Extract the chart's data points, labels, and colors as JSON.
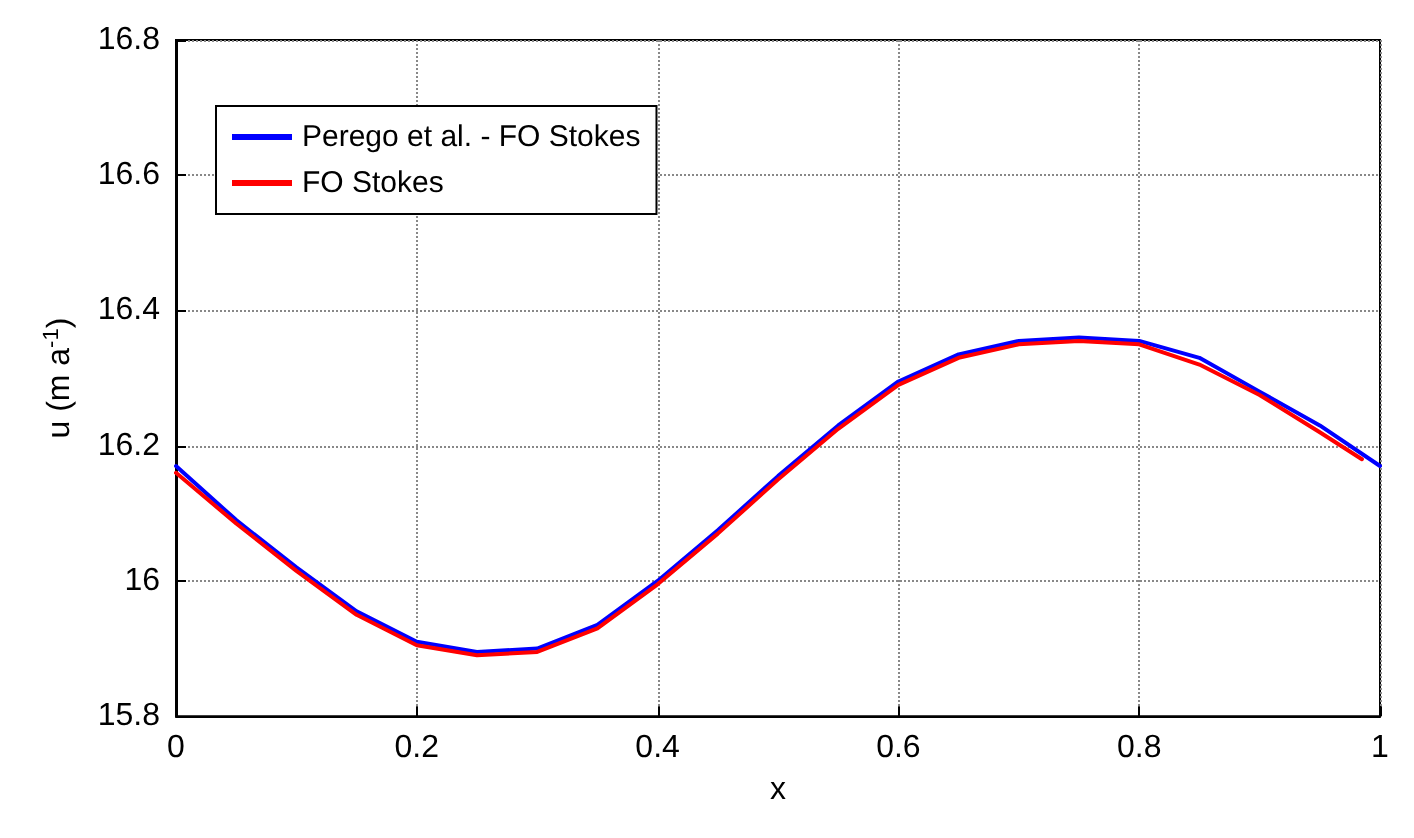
{
  "chart_data": {
    "type": "line",
    "xlabel": "x",
    "ylabel": "u (m a$^{-1}$)",
    "xlim": [
      0,
      1
    ],
    "xticks": [
      0,
      0.2,
      0.4,
      0.6,
      0.8,
      1
    ],
    "ylim": [
      15.8,
      16.8
    ],
    "yticks": [
      15.8,
      16,
      16.2,
      16.4,
      16.6,
      16.8
    ],
    "grid": true,
    "legend": "top left",
    "marker": "none",
    "line_style": "solid",
    "series": [
      {
        "name": "Perego et al. - FO Stokes",
        "color": "#0000ff",
        "x": [
          0,
          0.05,
          0.1,
          0.15,
          0.2,
          0.25,
          0.3,
          0.35,
          0.4,
          0.45,
          0.5,
          0.55,
          0.6,
          0.65,
          0.7,
          0.75,
          0.8,
          0.85,
          0.9,
          0.95,
          1
        ],
        "values": [
          16.17,
          16.09,
          16.02,
          15.955,
          15.91,
          15.895,
          15.9,
          15.935,
          16.0,
          16.075,
          16.155,
          16.23,
          16.295,
          16.335,
          16.355,
          16.36,
          16.355,
          16.33,
          16.28,
          16.23,
          16.17
        ]
      },
      {
        "name": "FO Stokes",
        "color": "#ff0000",
        "x": [
          0,
          0.05,
          0.1,
          0.15,
          0.2,
          0.25,
          0.3,
          0.35,
          0.4,
          0.45,
          0.5,
          0.55,
          0.6,
          0.65,
          0.7,
          0.75,
          0.8,
          0.85,
          0.9,
          0.95,
          0.985
        ],
        "values": [
          16.16,
          16.085,
          16.015,
          15.95,
          15.905,
          15.89,
          15.895,
          15.93,
          15.995,
          16.07,
          16.15,
          16.225,
          16.29,
          16.33,
          16.35,
          16.355,
          16.35,
          16.32,
          16.275,
          16.22,
          16.18
        ]
      }
    ]
  }
}
